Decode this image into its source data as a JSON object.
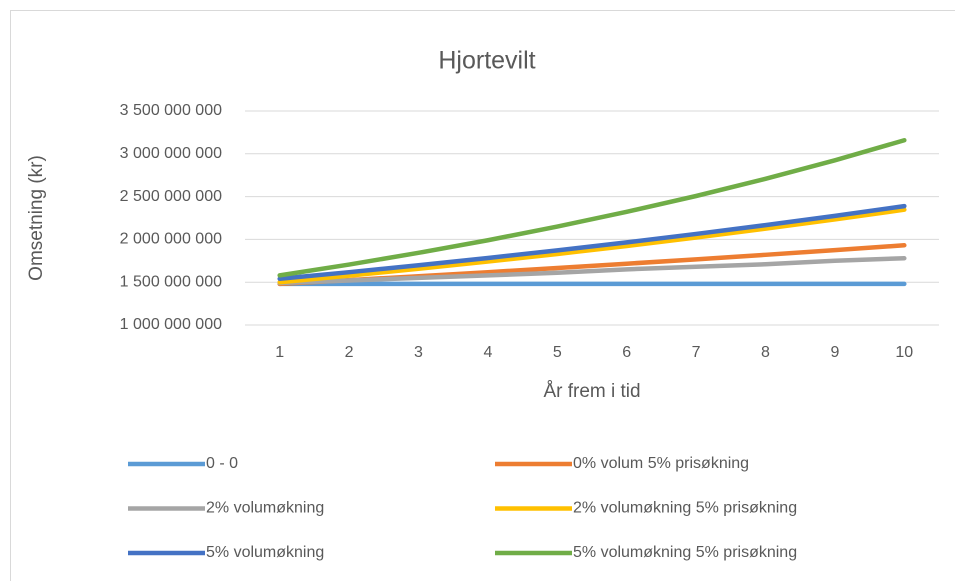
{
  "chart_data": {
    "type": "line",
    "title": "Hjortevilt",
    "x_label": "År frem i tid",
    "y_label": "Omsetning (kr)",
    "categories": [
      "1",
      "2",
      "3",
      "4",
      "5",
      "6",
      "7",
      "8",
      "9",
      "10"
    ],
    "series": [
      {
        "name": "0 - 0",
        "color": "#5b9bd5",
        "values": [
          1480000000,
          1480000000,
          1480000000,
          1480000000,
          1480000000,
          1480000000,
          1480000000,
          1480000000,
          1480000000,
          1480000000
        ]
      },
      {
        "name": "0% volum 5% prisøkning",
        "color": "#ed7d31",
        "values": [
          1480000000,
          1524000000,
          1570000000,
          1617000000,
          1666000000,
          1716000000,
          1767000000,
          1820000000,
          1875000000,
          1931000000
        ]
      },
      {
        "name": "2% volumøkning",
        "color": "#a5a5a5",
        "values": [
          1490000000,
          1520000000,
          1550000000,
          1580000000,
          1610000000,
          1650000000,
          1680000000,
          1710000000,
          1750000000,
          1780000000
        ]
      },
      {
        "name": "2% volumøkning 5% prisøkning",
        "color": "#ffc000",
        "values": [
          1500000000,
          1577000000,
          1657000000,
          1741000000,
          1830000000,
          1923000000,
          2022000000,
          2125000000,
          2233000000,
          2347000000
        ]
      },
      {
        "name": "5% volumøkning",
        "color": "#4472c4",
        "values": [
          1540000000,
          1617000000,
          1698000000,
          1783000000,
          1872000000,
          1965000000,
          2064000000,
          2167000000,
          2275000000,
          2389000000
        ]
      },
      {
        "name": "5% volumøkning 5% prisøkning",
        "color": "#70ad47",
        "values": [
          1580000000,
          1706000000,
          1843000000,
          1990000000,
          2150000000,
          2322000000,
          2507000000,
          2708000000,
          2924000000,
          3158000000
        ]
      }
    ],
    "ylim": [
      1000000000,
      3500000000
    ],
    "yticks": [
      {
        "value": 1000000000,
        "label": "1 000 000 000"
      },
      {
        "value": 1500000000,
        "label": "1 500 000 000"
      },
      {
        "value": 2000000000,
        "label": "2 000 000 000"
      },
      {
        "value": 2500000000,
        "label": "2 500 000 000"
      },
      {
        "value": 3000000000,
        "label": "3 000 000 000"
      },
      {
        "value": 3500000000,
        "label": "3 500 000 000"
      }
    ],
    "grid": true,
    "legend": "bottom"
  }
}
